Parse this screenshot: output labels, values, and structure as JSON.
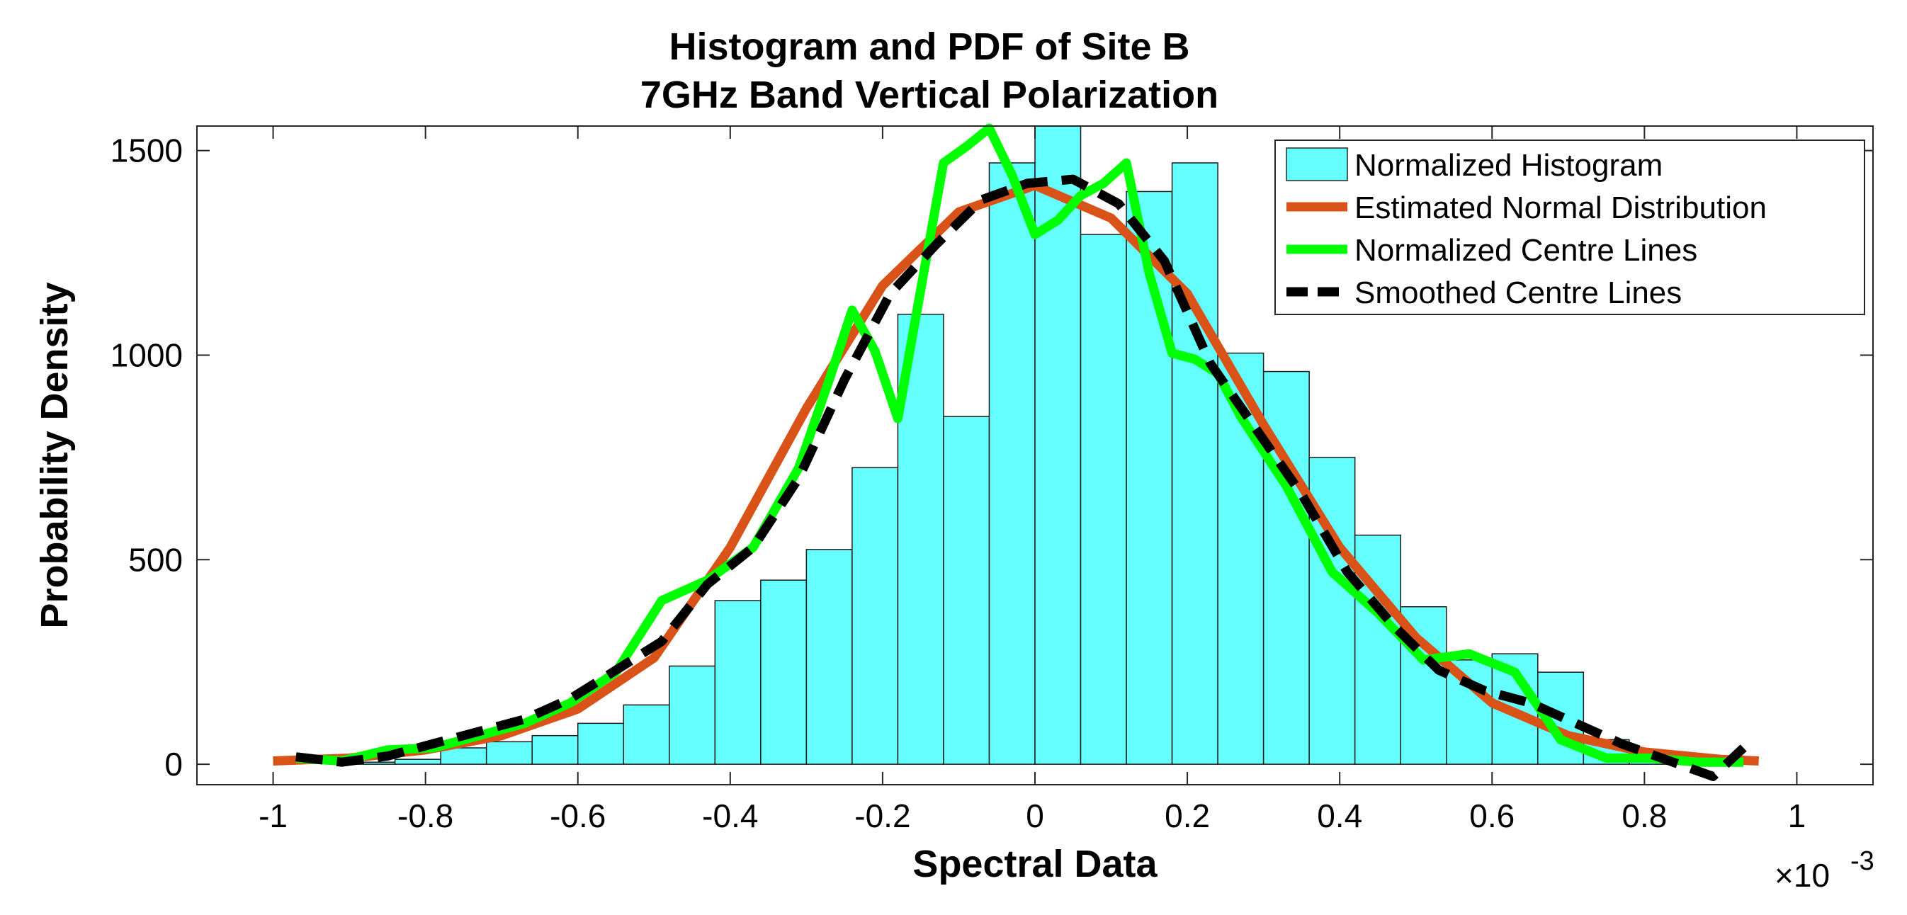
{
  "chart_data": {
    "type": "bar",
    "title_line1": "Histogram and PDF of Site B",
    "title_line2": "7GHz Band Vertical Polarization",
    "xlabel": "Spectral Data",
    "ylabel": "Probability Density",
    "x_exponent_prefix": "×10",
    "x_exponent_power": "-3",
    "xlim": [
      -1.1,
      1.1
    ],
    "ylim": [
      -50,
      1560
    ],
    "xticks": [
      -1,
      -0.8,
      -0.6,
      -0.4,
      -0.2,
      0,
      0.2,
      0.4,
      0.6,
      0.8,
      1
    ],
    "xtick_labels": [
      "-1",
      "-0.8",
      "-0.6",
      "-0.4",
      "-0.2",
      "0",
      "0.2",
      "0.4",
      "0.6",
      "0.8",
      "1"
    ],
    "yticks": [
      0,
      500,
      1000,
      1500
    ],
    "ytick_labels": [
      "0",
      "500",
      "1000",
      "1500"
    ],
    "legend": {
      "position": "top-right",
      "entries": [
        "Normalized Histogram",
        "Estimated Normal Distribution",
        "Normalized Centre Lines",
        "Smoothed Centre Lines"
      ]
    },
    "histogram": {
      "name": "Normalized Histogram",
      "color": "#66FFFF",
      "bin_width": 0.06,
      "bin_starts": [
        -0.9,
        -0.84,
        -0.78,
        -0.72,
        -0.66,
        -0.6,
        -0.54,
        -0.48,
        -0.42,
        -0.36,
        -0.3,
        -0.24,
        -0.18,
        -0.12,
        -0.06,
        0.0,
        0.06,
        0.12,
        0.18,
        0.24,
        0.3,
        0.36,
        0.42,
        0.48,
        0.54,
        0.6,
        0.66,
        0.72,
        0.78,
        0.84
      ],
      "values": [
        5,
        12,
        40,
        55,
        70,
        100,
        145,
        240,
        400,
        450,
        525,
        725,
        1100,
        850,
        1470,
        1560,
        1295,
        1400,
        1470,
        1005,
        960,
        750,
        560,
        385,
        255,
        270,
        225,
        60,
        15,
        5
      ]
    },
    "series": [
      {
        "name": "Estimated Normal Distribution",
        "color": "#D95319",
        "style": "solid",
        "x": [
          -1.0,
          -0.9,
          -0.8,
          -0.7,
          -0.6,
          -0.5,
          -0.4,
          -0.3,
          -0.2,
          -0.1,
          0.0,
          0.1,
          0.2,
          0.3,
          0.4,
          0.5,
          0.6,
          0.7,
          0.8,
          0.9,
          0.95
        ],
        "y": [
          8,
          15,
          35,
          70,
          135,
          260,
          530,
          870,
          1170,
          1350,
          1415,
          1335,
          1150,
          830,
          530,
          310,
          150,
          70,
          30,
          12,
          8
        ]
      },
      {
        "name": "Normalized Centre Lines",
        "color": "#00FF00",
        "style": "solid",
        "x": [
          -0.97,
          -0.91,
          -0.85,
          -0.79,
          -0.73,
          -0.67,
          -0.61,
          -0.55,
          -0.49,
          -0.43,
          -0.37,
          -0.31,
          -0.27,
          -0.24,
          -0.21,
          -0.18,
          -0.15,
          -0.12,
          -0.09,
          -0.06,
          -0.03,
          0.0,
          0.03,
          0.06,
          0.09,
          0.12,
          0.15,
          0.18,
          0.21,
          0.24,
          0.27,
          0.33,
          0.39,
          0.45,
          0.51,
          0.57,
          0.63,
          0.69,
          0.75,
          0.81,
          0.87,
          0.93
        ],
        "y": [
          15,
          8,
          35,
          40,
          70,
          100,
          150,
          225,
          400,
          450,
          530,
          725,
          940,
          1110,
          1010,
          845,
          1160,
          1470,
          1510,
          1555,
          1440,
          1295,
          1330,
          1390,
          1420,
          1470,
          1200,
          1005,
          990,
          955,
          850,
          680,
          470,
          370,
          255,
          270,
          225,
          60,
          15,
          15,
          5,
          5
        ]
      },
      {
        "name": "Smoothed Centre Lines",
        "color": "#000000",
        "style": "dashed",
        "x": [
          -0.97,
          -0.91,
          -0.85,
          -0.79,
          -0.73,
          -0.67,
          -0.61,
          -0.55,
          -0.49,
          -0.43,
          -0.37,
          -0.31,
          -0.25,
          -0.19,
          -0.13,
          -0.07,
          -0.01,
          0.05,
          0.11,
          0.17,
          0.23,
          0.29,
          0.35,
          0.41,
          0.47,
          0.53,
          0.59,
          0.65,
          0.71,
          0.77,
          0.83,
          0.89,
          0.93
        ],
        "y": [
          18,
          5,
          20,
          50,
          80,
          110,
          160,
          230,
          300,
          440,
          530,
          700,
          940,
          1150,
          1270,
          1380,
          1420,
          1430,
          1370,
          1230,
          980,
          820,
          660,
          470,
          340,
          230,
          180,
          150,
          100,
          50,
          10,
          -30,
          40
        ]
      }
    ]
  }
}
